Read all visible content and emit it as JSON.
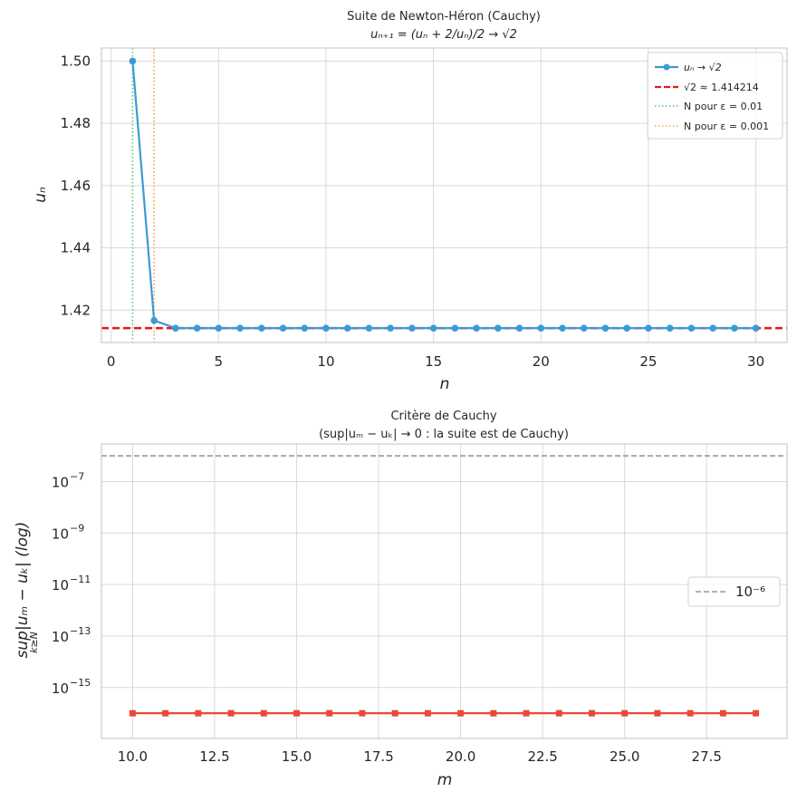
{
  "chart_data": [
    {
      "type": "line",
      "title": "Suite de Newton-Héron (Cauchy)",
      "subtitle": "uₙ₊₁ = (uₙ + 2/uₙ)/2 → √2",
      "xlabel": "n",
      "ylabel": "uₙ",
      "xlim": [
        -0.45,
        31.45
      ],
      "ylim": [
        1.4096,
        1.5042
      ],
      "xticks": [
        0,
        5,
        10,
        15,
        20,
        25,
        30
      ],
      "xtick_labels": [
        "0",
        "5",
        "10",
        "15",
        "20",
        "25",
        "30"
      ],
      "yticks": [
        1.42,
        1.44,
        1.46,
        1.48,
        1.5
      ],
      "ytick_labels": [
        "1.42",
        "1.44",
        "1.46",
        "1.48",
        "1.50"
      ],
      "grid": true,
      "legend_position": "top-right",
      "series": [
        {
          "name": "uₙ → √2",
          "color": "#3a9bd5",
          "style": "line-markers",
          "x": [
            1,
            2,
            3,
            4,
            5,
            6,
            7,
            8,
            9,
            10,
            11,
            12,
            13,
            14,
            15,
            16,
            17,
            18,
            19,
            20,
            21,
            22,
            23,
            24,
            25,
            26,
            27,
            28,
            29,
            30
          ],
          "y": [
            1.5,
            1.416667,
            1.414216,
            1.414214,
            1.414214,
            1.414214,
            1.414214,
            1.414214,
            1.414214,
            1.414214,
            1.414214,
            1.414214,
            1.414214,
            1.414214,
            1.414214,
            1.414214,
            1.414214,
            1.414214,
            1.414214,
            1.414214,
            1.414214,
            1.414214,
            1.414214,
            1.414214,
            1.414214,
            1.414214,
            1.414214,
            1.414214,
            1.414214,
            1.414214
          ]
        }
      ],
      "reference_lines": [
        {
          "name": "√2 ≈ 1.414214",
          "orientation": "horizontal",
          "value": 1.414214,
          "color": "#e31a1c",
          "style": "dashed"
        },
        {
          "name": "N pour ε = 0.01",
          "orientation": "vertical",
          "value": 1,
          "color": "#4cc975",
          "style": "dotted"
        },
        {
          "name": "N pour ε = 0.001",
          "orientation": "vertical",
          "value": 2,
          "color": "#f5a142",
          "style": "dotted"
        }
      ]
    },
    {
      "type": "line",
      "title": "Critère de Cauchy",
      "subtitle": "(sup|uₘ − uₖ| → 0 : la suite est de Cauchy)",
      "xlabel": "m",
      "ylabel": "sup|uₘ − uₖ| (log)",
      "ylabel_sub": "k≥N",
      "yscale": "log",
      "xlim": [
        9.05,
        29.95
      ],
      "ylim_exp": [
        -16.98,
        -5.54
      ],
      "xticks": [
        10,
        12.5,
        15,
        17.5,
        20,
        22.5,
        25,
        27.5
      ],
      "xtick_labels": [
        "10.0",
        "12.5",
        "15.0",
        "17.5",
        "20.0",
        "22.5",
        "25.0",
        "27.5"
      ],
      "yticks_exp": [
        -15,
        -13,
        -11,
        -9,
        -7
      ],
      "ytick_labels": [
        "10",
        "10",
        "10",
        "10",
        "10"
      ],
      "ytick_exponents": [
        "−15",
        "−13",
        "−11",
        "−9",
        "−7"
      ],
      "grid": true,
      "legend_position": "center-right",
      "series": [
        {
          "name": "",
          "color": "#e8493a",
          "style": "line-square-markers",
          "x": [
            10,
            11,
            12,
            13,
            14,
            15,
            16,
            17,
            18,
            19,
            20,
            21,
            22,
            23,
            24,
            25,
            26,
            27,
            28,
            29
          ],
          "y": [
            1e-16,
            1e-16,
            1e-16,
            1e-16,
            1e-16,
            1e-16,
            1e-16,
            1e-16,
            1e-16,
            1e-16,
            1e-16,
            1e-16,
            1e-16,
            1e-16,
            1e-16,
            1e-16,
            1e-16,
            1e-16,
            1e-16,
            1e-16
          ]
        }
      ],
      "reference_lines": [
        {
          "name": "10⁻⁶",
          "orientation": "horizontal",
          "value": 1e-06,
          "color": "#999999",
          "style": "dashed"
        }
      ]
    }
  ]
}
